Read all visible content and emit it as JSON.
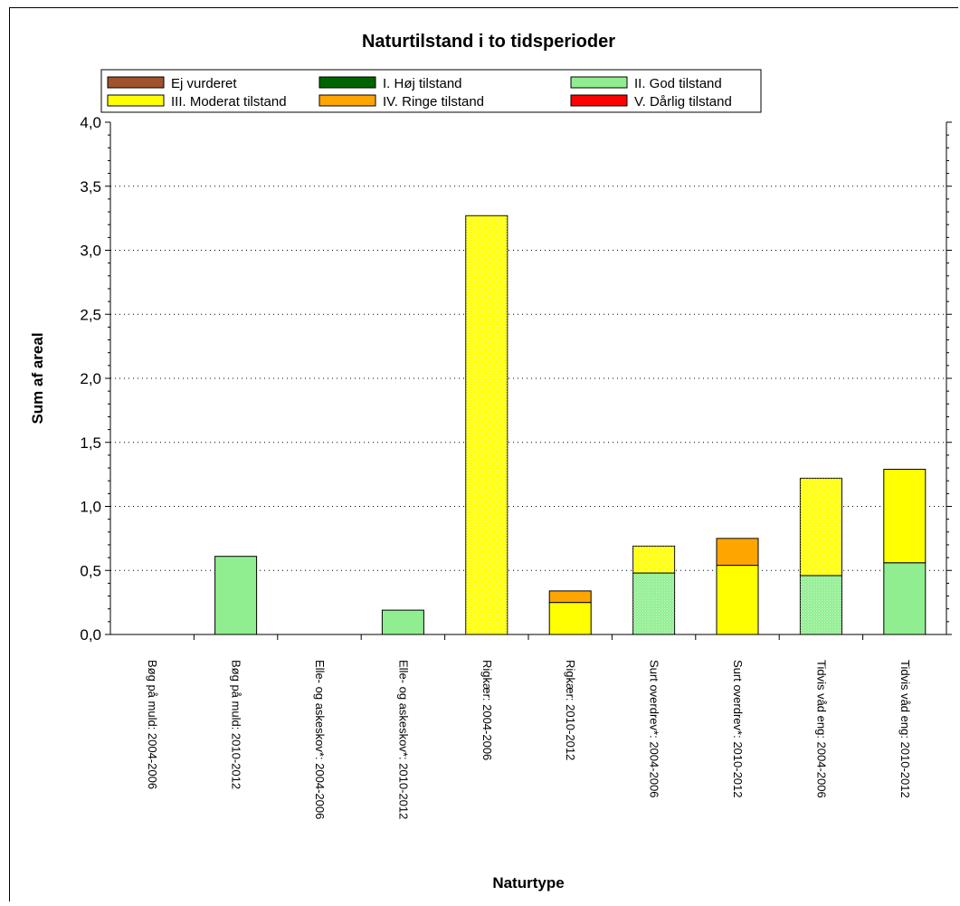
{
  "chart_data": {
    "type": "bar",
    "stacked": true,
    "title": "Naturtilstand i to tidsperioder",
    "xlabel": "Naturtype",
    "ylabel": "Sum af areal",
    "ylim": [
      0,
      4
    ],
    "ytick_labels": [
      "0,0",
      "0,5",
      "1,0",
      "1,5",
      "2,0",
      "2,5",
      "3,0",
      "3,5",
      "4,0"
    ],
    "grid": "horizontal dotted",
    "legend_position": "top",
    "categories": [
      "Bøg på muld: 2004-2006",
      "Bøg på muld: 2010-2012",
      "Elle- og askeskov*: 2004-2006",
      "Elle- og askeskov*: 2010-2012",
      "Rigkær: 2004-2006",
      "Rigkær: 2010-2012",
      "Surt overdrev*: 2004-2006",
      "Surt overdrev*: 2010-2012",
      "Tidvis våd eng: 2004-2006",
      "Tidvis våd eng: 2010-2012"
    ],
    "category_patterned": [
      true,
      false,
      true,
      false,
      true,
      false,
      true,
      false,
      true,
      false
    ],
    "series": [
      {
        "name": "Ej vurderet",
        "color": "#a0522d",
        "values": [
          0,
          0,
          0,
          0,
          0,
          0,
          0,
          0,
          0,
          0
        ]
      },
      {
        "name": "I. Høj tilstand",
        "color": "#006400",
        "values": [
          0,
          0,
          0,
          0,
          0,
          0,
          0,
          0,
          0,
          0
        ]
      },
      {
        "name": "II. God tilstand",
        "color": "#90ee90",
        "values": [
          0,
          0.61,
          0,
          0.19,
          0,
          0,
          0.48,
          0,
          0.46,
          0.56
        ]
      },
      {
        "name": "III. Moderat tilstand",
        "color": "#ffff00",
        "values": [
          0,
          0,
          0,
          0,
          3.27,
          0.25,
          0.21,
          0.54,
          0.76,
          0.73
        ]
      },
      {
        "name": "IV. Ringe tilstand",
        "color": "#ffa500",
        "values": [
          0,
          0,
          0,
          0,
          0,
          0.09,
          0,
          0.21,
          0,
          0
        ]
      },
      {
        "name": "V. Dårlig tilstand",
        "color": "#ff0000",
        "values": [
          0,
          0,
          0,
          0,
          0,
          0,
          0,
          0,
          0,
          0
        ]
      }
    ]
  }
}
